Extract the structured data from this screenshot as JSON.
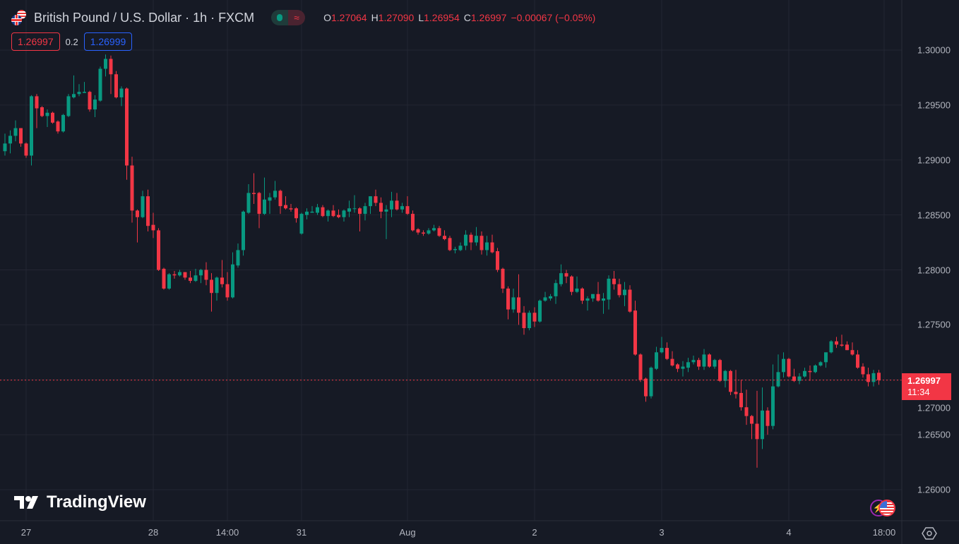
{
  "header": {
    "title": "British Pound / U.S. Dollar · 1h · FXCM",
    "toggle_icon": "≈",
    "ohlc": {
      "o_label": "O",
      "o": "1.27064",
      "h_label": "H",
      "h": "1.27090",
      "l_label": "L",
      "l": "1.26954",
      "c_label": "C",
      "c": "1.26997",
      "change": "−0.00067 (−0.05%)"
    },
    "sell_price": "1.26997",
    "spread": "0.2",
    "buy_price": "1.26999"
  },
  "current": {
    "price": "1.26997",
    "countdown": "11:34"
  },
  "logo": {
    "text": "TradingView"
  },
  "colors": {
    "up": "#089981",
    "down": "#f23645",
    "bg": "#161a25",
    "grid": "#232632"
  },
  "chart_data": {
    "type": "candlestick",
    "symbol": "GBPUSD",
    "interval": "1h",
    "ylim": [
      1.2575,
      1.3035
    ],
    "yticks": [
      "1.30000",
      "1.29500",
      "1.29000",
      "1.28500",
      "1.28000",
      "1.27500",
      "1.27000",
      "1.26500",
      "1.26000"
    ],
    "ytick_values": [
      1.3,
      1.295,
      1.29,
      1.285,
      1.28,
      1.275,
      1.27,
      1.265,
      1.26
    ],
    "xticks": [
      {
        "label": "27",
        "index": 4
      },
      {
        "label": "28",
        "index": 28
      },
      {
        "label": "14:00",
        "index": 42
      },
      {
        "label": "31",
        "index": 56
      },
      {
        "label": "Aug",
        "index": 76
      },
      {
        "label": "2",
        "index": 100
      },
      {
        "label": "3",
        "index": 124
      },
      {
        "label": "4",
        "index": 148
      },
      {
        "label": "18:00",
        "index": 166
      }
    ],
    "ohlc": [
      [
        1.2908,
        1.2924,
        1.2904,
        1.2915
      ],
      [
        1.2915,
        1.2927,
        1.2906,
        1.2922
      ],
      [
        1.2922,
        1.2936,
        1.2917,
        1.2929
      ],
      [
        1.2929,
        1.2929,
        1.2912,
        1.2915
      ],
      [
        1.2915,
        1.2916,
        1.2902,
        1.2904
      ],
      [
        1.2904,
        1.2959,
        1.2895,
        1.2958
      ],
      [
        1.2958,
        1.296,
        1.2929,
        1.2947
      ],
      [
        1.2948,
        1.2949,
        1.2939,
        1.294
      ],
      [
        1.294,
        1.2946,
        1.293,
        1.2943
      ],
      [
        1.2943,
        1.2944,
        1.2933,
        1.2934
      ],
      [
        1.2935,
        1.2936,
        1.2924,
        1.2926
      ],
      [
        1.2926,
        1.2942,
        1.2925,
        1.2941
      ],
      [
        1.294,
        1.296,
        1.2939,
        1.2958
      ],
      [
        1.2957,
        1.2977,
        1.2956,
        1.296
      ],
      [
        1.296,
        1.2969,
        1.2958,
        1.2962
      ],
      [
        1.2961,
        1.2971,
        1.2961,
        1.2962
      ],
      [
        1.2962,
        1.2963,
        1.2944,
        1.2946
      ],
      [
        1.2946,
        1.2959,
        1.2939,
        1.2955
      ],
      [
        1.2954,
        1.2985,
        1.2953,
        1.2983
      ],
      [
        1.2983,
        1.2996,
        1.2976,
        1.2992
      ],
      [
        1.2992,
        1.2995,
        1.296,
        1.2978
      ],
      [
        1.2978,
        1.2981,
        1.2956,
        1.2957
      ],
      [
        1.2957,
        1.2967,
        1.2949,
        1.2965
      ],
      [
        1.2965,
        1.2966,
        1.2882,
        1.2895
      ],
      [
        1.2895,
        1.2903,
        1.2843,
        1.2854
      ],
      [
        1.2854,
        1.2855,
        1.2825,
        1.2848
      ],
      [
        1.2848,
        1.2872,
        1.2847,
        1.2867
      ],
      [
        1.2867,
        1.2873,
        1.2835,
        1.284
      ],
      [
        1.2841,
        1.2852,
        1.2829,
        1.2836
      ],
      [
        1.2836,
        1.2838,
        1.2799,
        1.28
      ],
      [
        1.2801,
        1.2802,
        1.2782,
        1.2783
      ],
      [
        1.2783,
        1.2797,
        1.2782,
        1.2796
      ],
      [
        1.2796,
        1.2799,
        1.2792,
        1.2795
      ],
      [
        1.2795,
        1.28,
        1.2794,
        1.2798
      ],
      [
        1.2798,
        1.2798,
        1.2791,
        1.2793
      ],
      [
        1.2793,
        1.2799,
        1.2788,
        1.279
      ],
      [
        1.279,
        1.2801,
        1.2789,
        1.2795
      ],
      [
        1.2795,
        1.2801,
        1.2788,
        1.28
      ],
      [
        1.28,
        1.2807,
        1.2786,
        1.2791
      ],
      [
        1.2791,
        1.2797,
        1.2762,
        1.2779
      ],
      [
        1.2779,
        1.2794,
        1.2772,
        1.2793
      ],
      [
        1.2793,
        1.2809,
        1.2784,
        1.2787
      ],
      [
        1.2787,
        1.2798,
        1.2772,
        1.2775
      ],
      [
        1.2775,
        1.2816,
        1.2774,
        1.2805
      ],
      [
        1.2804,
        1.2824,
        1.2802,
        1.2818
      ],
      [
        1.2818,
        1.2854,
        1.2813,
        1.2853
      ],
      [
        1.2852,
        1.2878,
        1.2851,
        1.287
      ],
      [
        1.287,
        1.2888,
        1.286,
        1.2869
      ],
      [
        1.287,
        1.2871,
        1.2838,
        1.2851
      ],
      [
        1.2851,
        1.2884,
        1.285,
        1.2864
      ],
      [
        1.2863,
        1.287,
        1.2851,
        1.2866
      ],
      [
        1.2866,
        1.2881,
        1.2864,
        1.2872
      ],
      [
        1.2872,
        1.2873,
        1.2851,
        1.2858
      ],
      [
        1.2859,
        1.2867,
        1.2855,
        1.2856
      ],
      [
        1.2856,
        1.286,
        1.2853,
        1.2855
      ],
      [
        1.2856,
        1.2857,
        1.2843,
        1.2847
      ],
      [
        1.2833,
        1.2852,
        1.2832,
        1.2851
      ],
      [
        1.285,
        1.2856,
        1.2846,
        1.2853
      ],
      [
        1.2852,
        1.2858,
        1.2852,
        1.2853
      ],
      [
        1.2852,
        1.286,
        1.285,
        1.2857
      ],
      [
        1.2857,
        1.2859,
        1.2848,
        1.2849
      ],
      [
        1.2849,
        1.2855,
        1.2844,
        1.2854
      ],
      [
        1.2854,
        1.2859,
        1.2848,
        1.2849
      ],
      [
        1.285,
        1.2855,
        1.2847,
        1.2848
      ],
      [
        1.2848,
        1.2855,
        1.2844,
        1.2854
      ],
      [
        1.2853,
        1.2863,
        1.2848,
        1.2856
      ],
      [
        1.2856,
        1.2868,
        1.2852,
        1.2856
      ],
      [
        1.2856,
        1.2857,
        1.2835,
        1.2851
      ],
      [
        1.2851,
        1.2861,
        1.2845,
        1.2858
      ],
      [
        1.2858,
        1.2867,
        1.2851,
        1.2867
      ],
      [
        1.2867,
        1.2873,
        1.2858,
        1.2861
      ],
      [
        1.2861,
        1.2866,
        1.2847,
        1.2853
      ],
      [
        1.2853,
        1.2859,
        1.2828,
        1.2855
      ],
      [
        1.2855,
        1.2871,
        1.2848,
        1.2863
      ],
      [
        1.2863,
        1.287,
        1.2854,
        1.2855
      ],
      [
        1.2855,
        1.2861,
        1.2852,
        1.2858
      ],
      [
        1.2858,
        1.2867,
        1.285,
        1.2851
      ],
      [
        1.2851,
        1.2854,
        1.2835,
        1.2836
      ],
      [
        1.2837,
        1.2838,
        1.2832,
        1.2834
      ],
      [
        1.2834,
        1.2836,
        1.2831,
        1.2833
      ],
      [
        1.2833,
        1.2838,
        1.2832,
        1.2836
      ],
      [
        1.2836,
        1.2841,
        1.2835,
        1.2838
      ],
      [
        1.2838,
        1.284,
        1.283,
        1.2831
      ],
      [
        1.2831,
        1.2836,
        1.2827,
        1.2828
      ],
      [
        1.2829,
        1.2831,
        1.2817,
        1.2818
      ],
      [
        1.2818,
        1.2821,
        1.2815,
        1.2819
      ],
      [
        1.2818,
        1.2825,
        1.2817,
        1.2822
      ],
      [
        1.2822,
        1.2836,
        1.2818,
        1.2832
      ],
      [
        1.2832,
        1.2834,
        1.2818,
        1.2825
      ],
      [
        1.2825,
        1.2839,
        1.2822,
        1.2831
      ],
      [
        1.2831,
        1.2835,
        1.2814,
        1.2818
      ],
      [
        1.2818,
        1.2831,
        1.2813,
        1.2825
      ],
      [
        1.2825,
        1.2832,
        1.2815,
        1.2816
      ],
      [
        1.2817,
        1.282,
        1.2798,
        1.28
      ],
      [
        1.2801,
        1.2802,
        1.2779,
        1.2783
      ],
      [
        1.2783,
        1.2785,
        1.2755,
        1.2764
      ],
      [
        1.2764,
        1.2783,
        1.2761,
        1.2775
      ],
      [
        1.2775,
        1.2796,
        1.275,
        1.2761
      ],
      [
        1.2761,
        1.2767,
        1.2741,
        1.2747
      ],
      [
        1.2747,
        1.2763,
        1.2745,
        1.2761
      ],
      [
        1.2761,
        1.2766,
        1.2748,
        1.2753
      ],
      [
        1.2753,
        1.2773,
        1.2752,
        1.2772
      ],
      [
        1.2772,
        1.278,
        1.2771,
        1.2775
      ],
      [
        1.2774,
        1.2778,
        1.2772,
        1.2776
      ],
      [
        1.2776,
        1.2791,
        1.2769,
        1.2788
      ],
      [
        1.2787,
        1.2805,
        1.2785,
        1.2797
      ],
      [
        1.2797,
        1.28,
        1.2788,
        1.2794
      ],
      [
        1.2794,
        1.2795,
        1.2777,
        1.278
      ],
      [
        1.278,
        1.2794,
        1.2779,
        1.2783
      ],
      [
        1.2783,
        1.2784,
        1.2769,
        1.2772
      ],
      [
        1.2772,
        1.2776,
        1.2763,
        1.2774
      ],
      [
        1.2774,
        1.2778,
        1.2771,
        1.2778
      ],
      [
        1.2778,
        1.2789,
        1.2771,
        1.2772
      ],
      [
        1.2772,
        1.2779,
        1.276,
        1.2774
      ],
      [
        1.2773,
        1.2795,
        1.2764,
        1.2792
      ],
      [
        1.2792,
        1.2799,
        1.2782,
        1.2787
      ],
      [
        1.2787,
        1.2792,
        1.2775,
        1.2777
      ],
      [
        1.2777,
        1.2789,
        1.2767,
        1.2782
      ],
      [
        1.2782,
        1.2786,
        1.2761,
        1.2762
      ],
      [
        1.2763,
        1.2772,
        1.2722,
        1.2723
      ],
      [
        1.2723,
        1.2724,
        1.2698,
        1.27
      ],
      [
        1.2701,
        1.2702,
        1.268,
        1.2685
      ],
      [
        1.2685,
        1.2712,
        1.2683,
        1.2711
      ],
      [
        1.271,
        1.273,
        1.2709,
        1.2725
      ],
      [
        1.2725,
        1.2739,
        1.2724,
        1.2729
      ],
      [
        1.2729,
        1.2734,
        1.2718,
        1.2719
      ],
      [
        1.2719,
        1.2726,
        1.2712,
        1.2713
      ],
      [
        1.2714,
        1.2715,
        1.2707,
        1.271
      ],
      [
        1.271,
        1.2717,
        1.2703,
        1.2712
      ],
      [
        1.2711,
        1.272,
        1.2707,
        1.2716
      ],
      [
        1.2716,
        1.2722,
        1.2714,
        1.2718
      ],
      [
        1.2718,
        1.272,
        1.2709,
        1.2712
      ],
      [
        1.2712,
        1.2728,
        1.2709,
        1.2723
      ],
      [
        1.2723,
        1.2724,
        1.2711,
        1.2712
      ],
      [
        1.2712,
        1.2719,
        1.271,
        1.2718
      ],
      [
        1.2718,
        1.2719,
        1.2698,
        1.2699
      ],
      [
        1.2699,
        1.2709,
        1.2693,
        1.2708
      ],
      [
        1.2708,
        1.2709,
        1.2686,
        1.2689
      ],
      [
        1.2689,
        1.2709,
        1.2683,
        1.2687
      ],
      [
        1.2688,
        1.27,
        1.2672,
        1.2675
      ],
      [
        1.2675,
        1.2691,
        1.2659,
        1.2667
      ],
      [
        1.2667,
        1.2668,
        1.2646,
        1.266
      ],
      [
        1.266,
        1.269,
        1.262,
        1.2646
      ],
      [
        1.2646,
        1.2693,
        1.2637,
        1.2672
      ],
      [
        1.2672,
        1.2675,
        1.265,
        1.2658
      ],
      [
        1.2658,
        1.2714,
        1.2655,
        1.2694
      ],
      [
        1.2694,
        1.2723,
        1.2693,
        1.2707
      ],
      [
        1.2707,
        1.2725,
        1.2702,
        1.2719
      ],
      [
        1.2719,
        1.272,
        1.2702,
        1.2703
      ],
      [
        1.2703,
        1.271,
        1.2698,
        1.2699
      ],
      [
        1.2699,
        1.2706,
        1.2696,
        1.2703
      ],
      [
        1.2703,
        1.2711,
        1.2702,
        1.2708
      ],
      [
        1.2708,
        1.2713,
        1.2699,
        1.2707
      ],
      [
        1.2707,
        1.2714,
        1.2706,
        1.2713
      ],
      [
        1.2713,
        1.2717,
        1.2712,
        1.2716
      ],
      [
        1.2716,
        1.2725,
        1.2711,
        1.2725
      ],
      [
        1.2725,
        1.2736,
        1.2724,
        1.2735
      ],
      [
        1.2735,
        1.2739,
        1.2729,
        1.2732
      ],
      [
        1.2732,
        1.2741,
        1.273,
        1.2731
      ],
      [
        1.2732,
        1.2735,
        1.2727,
        1.2727
      ],
      [
        1.2727,
        1.2734,
        1.2722,
        1.2723
      ],
      [
        1.2723,
        1.2727,
        1.271,
        1.2711
      ],
      [
        1.2712,
        1.2715,
        1.2702,
        1.2705
      ],
      [
        1.2705,
        1.2711,
        1.2694,
        1.2698
      ],
      [
        1.2698,
        1.2709,
        1.2694,
        1.2706
      ],
      [
        1.27064,
        1.2709,
        1.26954,
        1.26997
      ]
    ],
    "last_price": 1.26997,
    "grid": true
  }
}
